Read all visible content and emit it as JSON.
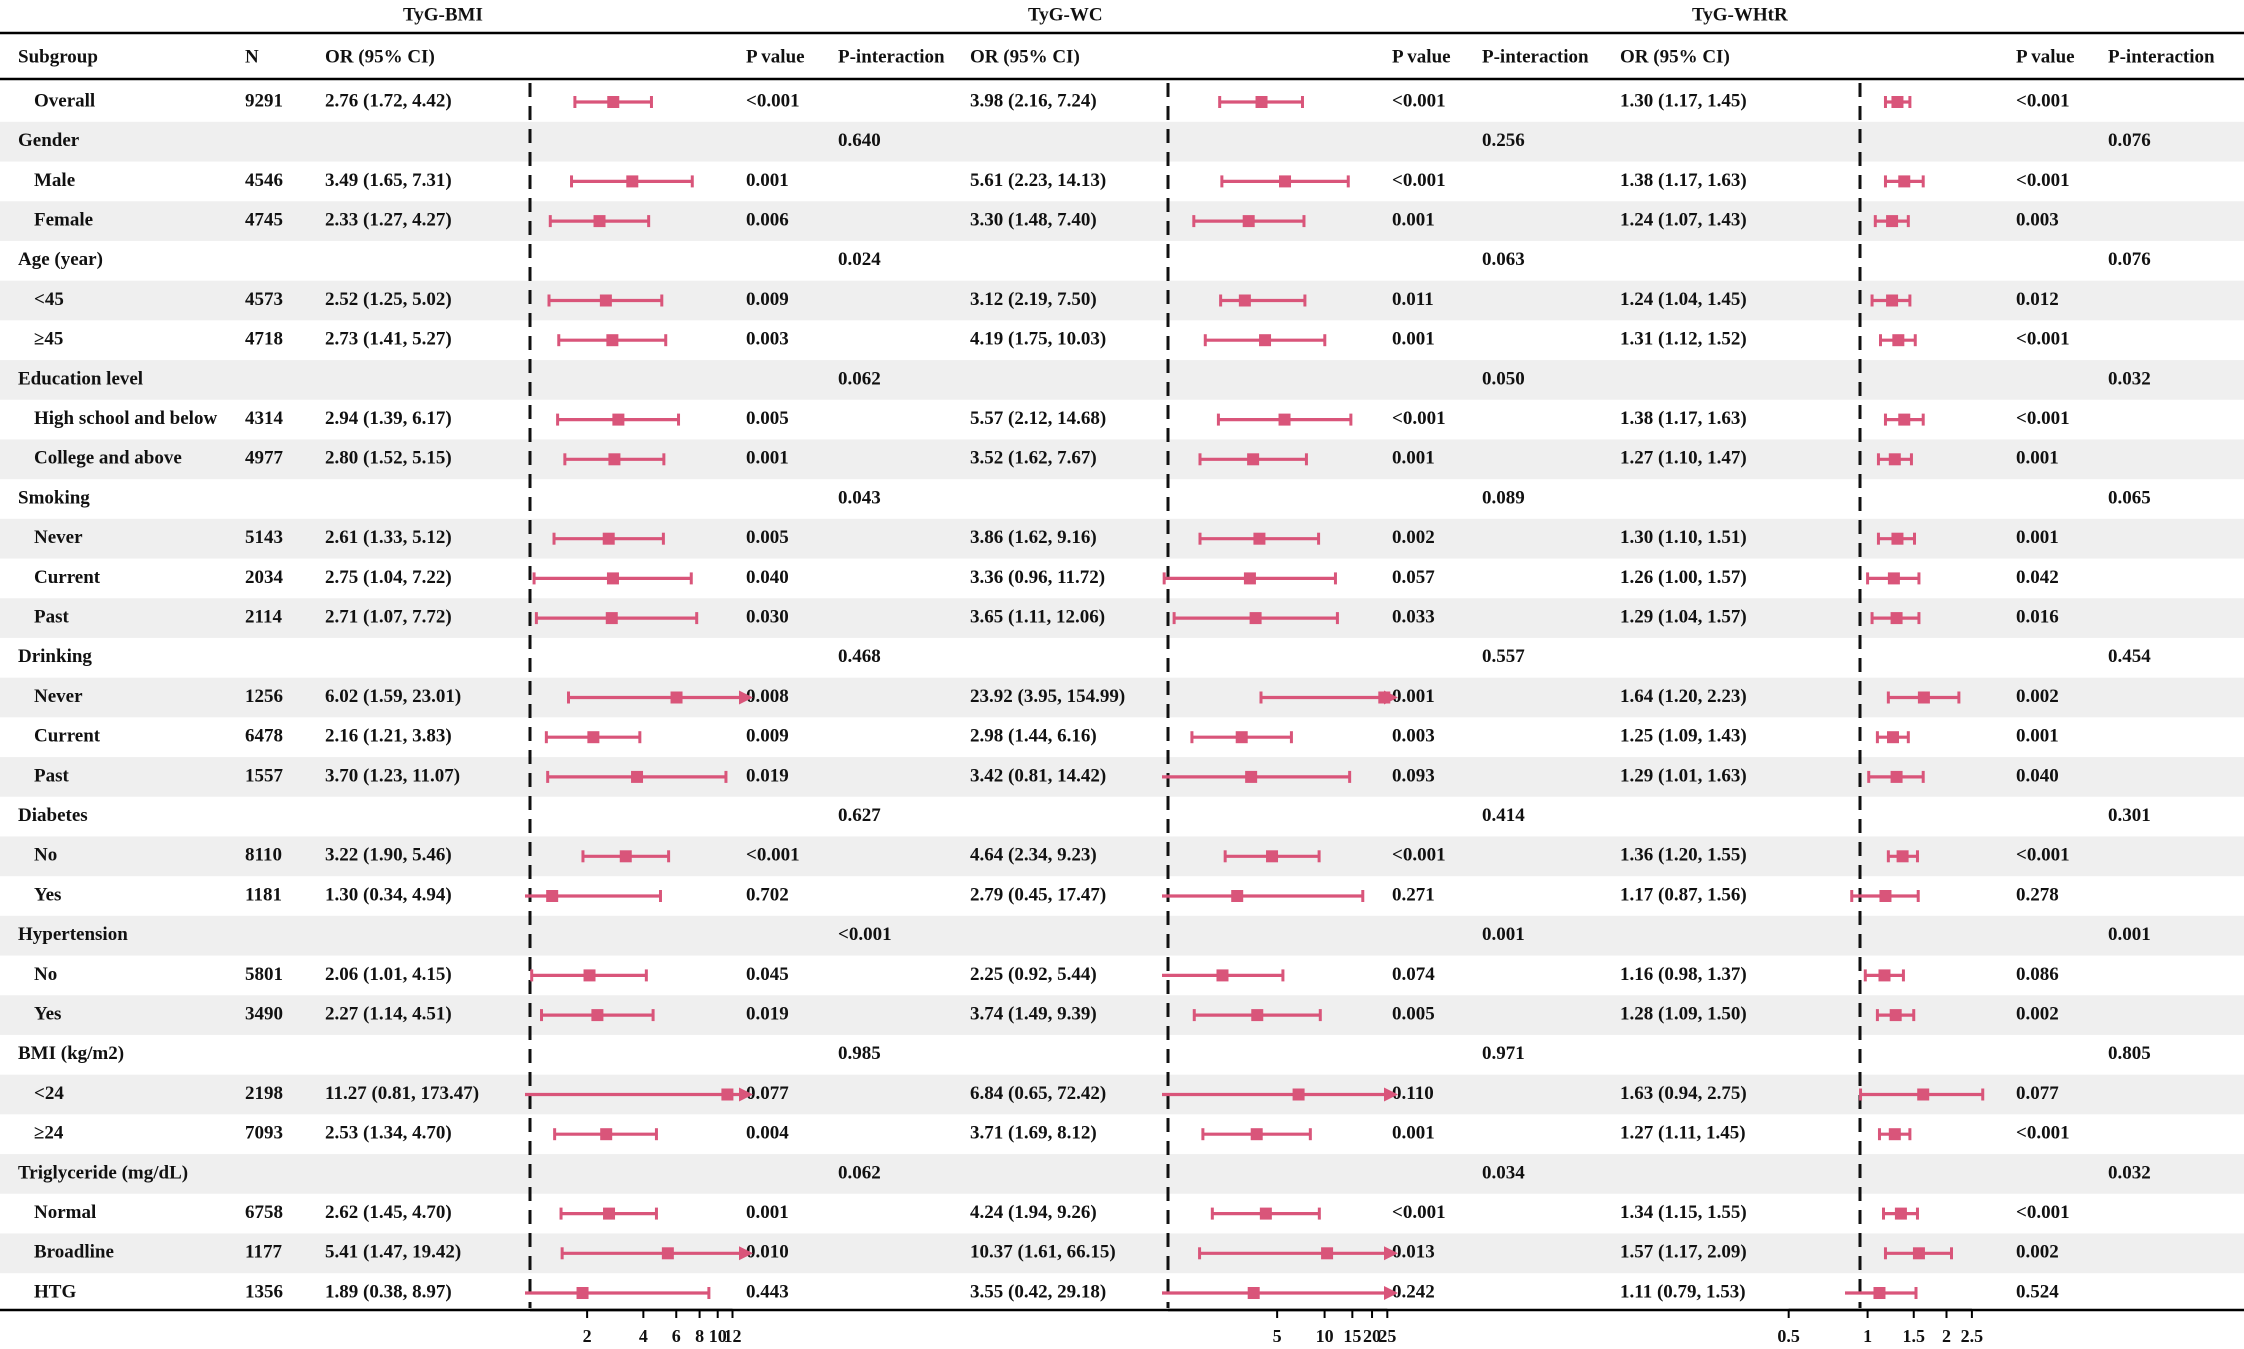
{
  "colors": {
    "marker": "#d9557a",
    "text": "#111111",
    "stripe": "#efefef",
    "rule": "#000000"
  },
  "panel_titles": [
    "TyG-BMI",
    "TyG-WC",
    "TyG-WHtR"
  ],
  "headers": {
    "subgroup": "Subgroup",
    "n": "N",
    "or": "OR (95% CI)",
    "p": "P value",
    "pint": "P-interaction"
  },
  "chart_data": {
    "type": "forest",
    "title": "",
    "reference_line": 1,
    "xscale": "log",
    "panels": [
      {
        "name": "TyG-BMI",
        "xlim": [
          0.93,
          14
        ],
        "ticks": [
          2,
          4,
          6,
          8,
          10,
          12
        ],
        "tick_labels": [
          "2",
          "4",
          "6",
          "8",
          "10",
          "12"
        ]
      },
      {
        "name": "TyG-WC",
        "xlim": [
          0.93,
          26
        ],
        "ticks": [
          5,
          10,
          15,
          20,
          25
        ],
        "tick_labels": [
          "5",
          "10",
          "15",
          "20",
          "25"
        ]
      },
      {
        "name": "TyG-WHtR",
        "xlim": [
          0.82,
          3.2
        ],
        "ticks": [
          0.5,
          1,
          1.5,
          2,
          2.5
        ],
        "tick_labels": [
          "0.5",
          "1",
          "1.5",
          "2",
          "2.5"
        ]
      }
    ],
    "rows": [
      {
        "label": "Overall",
        "indent": true,
        "n": "9291",
        "bmi": {
          "text": "2.76 (1.72, 4.42)",
          "or": 2.76,
          "lo": 1.72,
          "hi": 4.42,
          "p": "<0.001"
        },
        "wc": {
          "text": "3.98 (2.16, 7.24)",
          "or": 3.98,
          "lo": 2.16,
          "hi": 7.24,
          "p": "<0.001"
        },
        "whtr": {
          "text": "1.30 (1.17, 1.45)",
          "or": 1.3,
          "lo": 1.17,
          "hi": 1.45,
          "p": "<0.001"
        }
      },
      {
        "label": "Gender",
        "header": true,
        "pint": [
          "0.640",
          "0.256",
          "0.076"
        ]
      },
      {
        "label": "Male",
        "indent": true,
        "n": "4546",
        "bmi": {
          "text": "3.49 (1.65, 7.31)",
          "or": 3.49,
          "lo": 1.65,
          "hi": 7.31,
          "p": "0.001"
        },
        "wc": {
          "text": "5.61 (2.23, 14.13)",
          "or": 5.61,
          "lo": 2.23,
          "hi": 14.13,
          "p": "<0.001"
        },
        "whtr": {
          "text": "1.38 (1.17, 1.63)",
          "or": 1.38,
          "lo": 1.17,
          "hi": 1.63,
          "p": "<0.001"
        }
      },
      {
        "label": "Female",
        "indent": true,
        "n": "4745",
        "bmi": {
          "text": "2.33 (1.27, 4.27)",
          "or": 2.33,
          "lo": 1.27,
          "hi": 4.27,
          "p": "0.006"
        },
        "wc": {
          "text": "3.30 (1.48, 7.40)",
          "or": 3.3,
          "lo": 1.48,
          "hi": 7.4,
          "p": "0.001"
        },
        "whtr": {
          "text": "1.24 (1.07, 1.43)",
          "or": 1.24,
          "lo": 1.07,
          "hi": 1.43,
          "p": "0.003"
        }
      },
      {
        "label": "Age (year)",
        "header": true,
        "pint": [
          "0.024",
          "0.063",
          "0.076"
        ]
      },
      {
        "label": "<45",
        "indent": true,
        "n": "4573",
        "bmi": {
          "text": "2.52 (1.25, 5.02)",
          "or": 2.52,
          "lo": 1.25,
          "hi": 5.02,
          "p": "0.009"
        },
        "wc": {
          "text": "3.12 (2.19, 7.50)",
          "or": 3.12,
          "lo": 2.19,
          "hi": 7.5,
          "p": "0.011"
        },
        "whtr": {
          "text": "1.24 (1.04, 1.45)",
          "or": 1.24,
          "lo": 1.04,
          "hi": 1.45,
          "p": "0.012"
        }
      },
      {
        "label": "≥45",
        "indent": true,
        "n": "4718",
        "bmi": {
          "text": "2.73 (1.41, 5.27)",
          "or": 2.73,
          "lo": 1.41,
          "hi": 5.27,
          "p": "0.003"
        },
        "wc": {
          "text": "4.19 (1.75, 10.03)",
          "or": 4.19,
          "lo": 1.75,
          "hi": 10.03,
          "p": "0.001"
        },
        "whtr": {
          "text": "1.31 (1.12, 1.52)",
          "or": 1.31,
          "lo": 1.12,
          "hi": 1.52,
          "p": "<0.001"
        }
      },
      {
        "label": "Education level",
        "header": true,
        "pint": [
          "0.062",
          "0.050",
          "0.032"
        ]
      },
      {
        "label": "High school and below",
        "indent": true,
        "n": "4314",
        "bmi": {
          "text": "2.94 (1.39, 6.17)",
          "or": 2.94,
          "lo": 1.39,
          "hi": 6.17,
          "p": "0.005"
        },
        "wc": {
          "text": "5.57 (2.12, 14.68)",
          "or": 5.57,
          "lo": 2.12,
          "hi": 14.68,
          "p": "<0.001"
        },
        "whtr": {
          "text": "1.38 (1.17, 1.63)",
          "or": 1.38,
          "lo": 1.17,
          "hi": 1.63,
          "p": "<0.001"
        }
      },
      {
        "label": "College and above",
        "indent": true,
        "n": "4977",
        "bmi": {
          "text": "2.80 (1.52, 5.15)",
          "or": 2.8,
          "lo": 1.52,
          "hi": 5.15,
          "p": "0.001"
        },
        "wc": {
          "text": "3.52 (1.62, 7.67)",
          "or": 3.52,
          "lo": 1.62,
          "hi": 7.67,
          "p": "0.001"
        },
        "whtr": {
          "text": "1.27 (1.10, 1.47)",
          "or": 1.27,
          "lo": 1.1,
          "hi": 1.47,
          "p": "0.001"
        }
      },
      {
        "label": "Smoking",
        "header": true,
        "pint": [
          "0.043",
          "0.089",
          "0.065"
        ]
      },
      {
        "label": "Never",
        "indent": true,
        "n": "5143",
        "bmi": {
          "text": "2.61 (1.33, 5.12)",
          "or": 2.61,
          "lo": 1.33,
          "hi": 5.12,
          "p": "0.005"
        },
        "wc": {
          "text": "3.86 (1.62, 9.16)",
          "or": 3.86,
          "lo": 1.62,
          "hi": 9.16,
          "p": "0.002"
        },
        "whtr": {
          "text": "1.30 (1.10, 1.51)",
          "or": 1.3,
          "lo": 1.1,
          "hi": 1.51,
          "p": "0.001"
        }
      },
      {
        "label": "Current",
        "indent": true,
        "n": "2034",
        "bmi": {
          "text": "2.75 (1.04, 7.22)",
          "or": 2.75,
          "lo": 1.04,
          "hi": 7.22,
          "p": "0.040"
        },
        "wc": {
          "text": "3.36 (0.96, 11.72)",
          "or": 3.36,
          "lo": 0.96,
          "hi": 11.72,
          "p": "0.057"
        },
        "whtr": {
          "text": "1.26 (1.00, 1.57)",
          "or": 1.26,
          "lo": 1.0,
          "hi": 1.57,
          "p": "0.042"
        }
      },
      {
        "label": "Past",
        "indent": true,
        "n": "2114",
        "bmi": {
          "text": "2.71 (1.07, 7.72)",
          "or": 2.71,
          "lo": 1.07,
          "hi": 7.72,
          "p": "0.030"
        },
        "wc": {
          "text": "3.65 (1.11, 12.06)",
          "or": 3.65,
          "lo": 1.11,
          "hi": 12.06,
          "p": "0.033"
        },
        "whtr": {
          "text": "1.29 (1.04, 1.57)",
          "or": 1.29,
          "lo": 1.04,
          "hi": 1.57,
          "p": "0.016"
        }
      },
      {
        "label": "Drinking",
        "header": true,
        "pint": [
          "0.468",
          "0.557",
          "0.454"
        ]
      },
      {
        "label": "Never",
        "indent": true,
        "n": "1256",
        "bmi": {
          "text": "6.02 (1.59, 23.01)",
          "or": 6.02,
          "lo": 1.59,
          "hi": 23.01,
          "p": "0.008"
        },
        "wc": {
          "text": "23.92 (3.95, 154.99)",
          "or": 23.92,
          "lo": 3.95,
          "hi": 154.99,
          "p": "0.001"
        },
        "whtr": {
          "text": "1.64 (1.20, 2.23)",
          "or": 1.64,
          "lo": 1.2,
          "hi": 2.23,
          "p": "0.002"
        }
      },
      {
        "label": "Current",
        "indent": true,
        "n": "6478",
        "bmi": {
          "text": "2.16 (1.21, 3.83)",
          "or": 2.16,
          "lo": 1.21,
          "hi": 3.83,
          "p": "0.009"
        },
        "wc": {
          "text": "2.98 (1.44, 6.16)",
          "or": 2.98,
          "lo": 1.44,
          "hi": 6.16,
          "p": "0.003"
        },
        "whtr": {
          "text": "1.25 (1.09, 1.43)",
          "or": 1.25,
          "lo": 1.09,
          "hi": 1.43,
          "p": "0.001"
        }
      },
      {
        "label": "Past",
        "indent": true,
        "n": "1557",
        "bmi": {
          "text": "3.70 (1.23, 11.07)",
          "or": 3.7,
          "lo": 1.23,
          "hi": 11.07,
          "p": "0.019"
        },
        "wc": {
          "text": "3.42 (0.81, 14.42)",
          "or": 3.42,
          "lo": 0.81,
          "hi": 14.42,
          "p": "0.093"
        },
        "whtr": {
          "text": "1.29 (1.01, 1.63)",
          "or": 1.29,
          "lo": 1.01,
          "hi": 1.63,
          "p": "0.040"
        }
      },
      {
        "label": "Diabetes",
        "header": true,
        "pint": [
          "0.627",
          "0.414",
          "0.301"
        ]
      },
      {
        "label": "No",
        "indent": true,
        "n": "8110",
        "bmi": {
          "text": "3.22 (1.90, 5.46)",
          "or": 3.22,
          "lo": 1.9,
          "hi": 5.46,
          "p": "<0.001"
        },
        "wc": {
          "text": "4.64 (2.34, 9.23)",
          "or": 4.64,
          "lo": 2.34,
          "hi": 9.23,
          "p": "<0.001"
        },
        "whtr": {
          "text": "1.36 (1.20, 1.55)",
          "or": 1.36,
          "lo": 1.2,
          "hi": 1.55,
          "p": "<0.001"
        }
      },
      {
        "label": "Yes",
        "indent": true,
        "n": "1181",
        "bmi": {
          "text": "1.30 (0.34, 4.94)",
          "or": 1.3,
          "lo": 0.34,
          "hi": 4.94,
          "p": "0.702"
        },
        "wc": {
          "text": "2.79 (0.45, 17.47)",
          "or": 2.79,
          "lo": 0.45,
          "hi": 17.47,
          "p": "0.271"
        },
        "whtr": {
          "text": "1.17 (0.87, 1.56)",
          "or": 1.17,
          "lo": 0.87,
          "hi": 1.56,
          "p": "0.278"
        }
      },
      {
        "label": "Hypertension",
        "header": true,
        "pint": [
          "<0.001",
          "0.001",
          "0.001"
        ]
      },
      {
        "label": "No",
        "indent": true,
        "n": "5801",
        "bmi": {
          "text": "2.06 (1.01, 4.15)",
          "or": 2.06,
          "lo": 1.01,
          "hi": 4.15,
          "p": "0.045"
        },
        "wc": {
          "text": "2.25 (0.92, 5.44)",
          "or": 2.25,
          "lo": 0.92,
          "hi": 5.44,
          "p": "0.074"
        },
        "whtr": {
          "text": "1.16 (0.98, 1.37)",
          "or": 1.16,
          "lo": 0.98,
          "hi": 1.37,
          "p": "0.086"
        }
      },
      {
        "label": "Yes",
        "indent": true,
        "n": "3490",
        "bmi": {
          "text": "2.27 (1.14, 4.51)",
          "or": 2.27,
          "lo": 1.14,
          "hi": 4.51,
          "p": "0.019"
        },
        "wc": {
          "text": "3.74 (1.49, 9.39)",
          "or": 3.74,
          "lo": 1.49,
          "hi": 9.39,
          "p": "0.005"
        },
        "whtr": {
          "text": "1.28 (1.09, 1.50)",
          "or": 1.28,
          "lo": 1.09,
          "hi": 1.5,
          "p": "0.002"
        }
      },
      {
        "label": "BMI (kg/m2)",
        "header": true,
        "pint": [
          "0.985",
          "0.971",
          "0.805"
        ]
      },
      {
        "label": "<24",
        "indent": true,
        "n": "2198",
        "bmi": {
          "text": "11.27 (0.81, 173.47)",
          "or": 11.27,
          "lo": 0.81,
          "hi": 173.47,
          "p": "0.077"
        },
        "wc": {
          "text": "6.84 (0.65, 72.42)",
          "or": 6.84,
          "lo": 0.65,
          "hi": 72.42,
          "p": "0.110"
        },
        "whtr": {
          "text": "1.63 (0.94, 2.75)",
          "or": 1.63,
          "lo": 0.94,
          "hi": 2.75,
          "p": "0.077"
        }
      },
      {
        "label": "≥24",
        "indent": true,
        "n": "7093",
        "bmi": {
          "text": "2.53 (1.34, 4.70)",
          "or": 2.53,
          "lo": 1.34,
          "hi": 4.7,
          "p": "0.004"
        },
        "wc": {
          "text": "3.71 (1.69, 8.12)",
          "or": 3.71,
          "lo": 1.69,
          "hi": 8.12,
          "p": "0.001"
        },
        "whtr": {
          "text": "1.27 (1.11, 1.45)",
          "or": 1.27,
          "lo": 1.11,
          "hi": 1.45,
          "p": "<0.001"
        }
      },
      {
        "label": "Triglyceride (mg/dL)",
        "header": true,
        "pint": [
          "0.062",
          "0.034",
          "0.032"
        ]
      },
      {
        "label": "Normal",
        "indent": true,
        "n": "6758",
        "bmi": {
          "text": "2.62 (1.45, 4.70)",
          "or": 2.62,
          "lo": 1.45,
          "hi": 4.7,
          "p": "0.001"
        },
        "wc": {
          "text": "4.24 (1.94, 9.26)",
          "or": 4.24,
          "lo": 1.94,
          "hi": 9.26,
          "p": "<0.001"
        },
        "whtr": {
          "text": "1.34 (1.15, 1.55)",
          "or": 1.34,
          "lo": 1.15,
          "hi": 1.55,
          "p": "<0.001"
        }
      },
      {
        "label": "Broadline",
        "indent": true,
        "n": "1177",
        "bmi": {
          "text": "5.41 (1.47, 19.42)",
          "or": 5.41,
          "lo": 1.47,
          "hi": 19.42,
          "p": "0.010"
        },
        "wc": {
          "text": "10.37 (1.61, 66.15)",
          "or": 10.37,
          "lo": 1.61,
          "hi": 66.15,
          "p": "0.013"
        },
        "whtr": {
          "text": "1.57 (1.17, 2.09)",
          "or": 1.57,
          "lo": 1.17,
          "hi": 2.09,
          "p": "0.002"
        }
      },
      {
        "label": "HTG",
        "indent": true,
        "n": "1356",
        "bmi": {
          "text": "1.89 (0.38, 8.97)",
          "or": 1.89,
          "lo": 0.38,
          "hi": 8.97,
          "p": "0.443"
        },
        "wc": {
          "text": "3.55 (0.42, 29.18)",
          "or": 3.55,
          "lo": 0.42,
          "hi": 29.18,
          "p": "0.242"
        },
        "whtr": {
          "text": "1.11 (0.79, 1.53)",
          "or": 1.11,
          "lo": 0.79,
          "hi": 1.53,
          "p": "0.524"
        }
      }
    ]
  }
}
